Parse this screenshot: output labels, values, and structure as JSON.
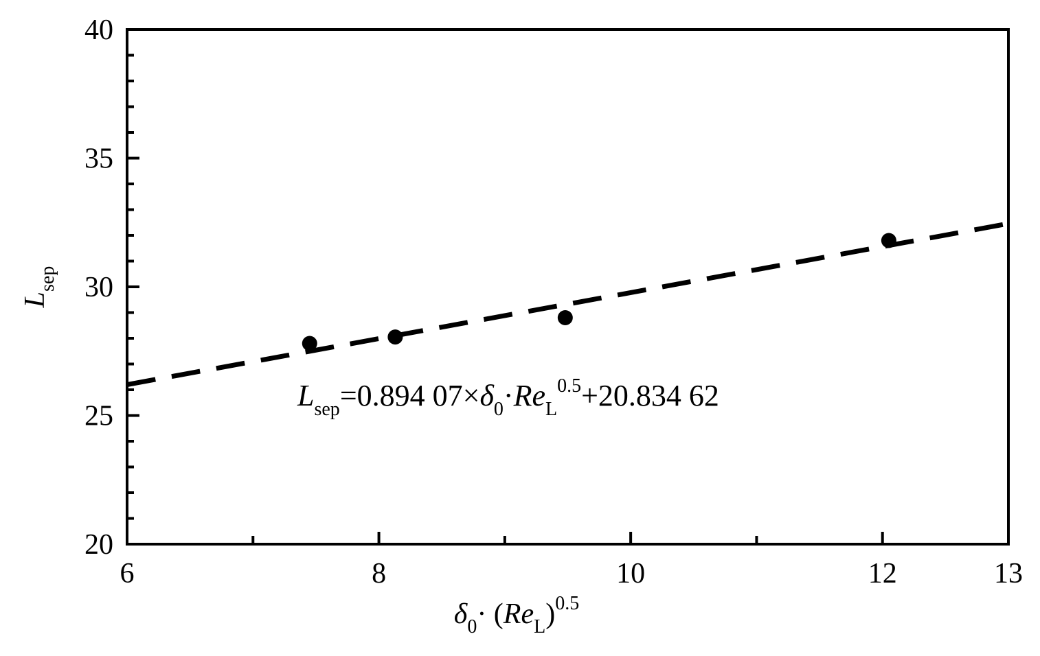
{
  "chart_data": {
    "type": "scatter",
    "title": "",
    "xlabel": {
      "base": "δ",
      "base_sub": "0",
      "middle": "· (",
      "var": "Re",
      "var_sub": "L",
      "close": ")",
      "sup": "0.5"
    },
    "ylabel": {
      "base": "L",
      "sub": "sep"
    },
    "xlim": [
      6,
      13
    ],
    "ylim": [
      20,
      40
    ],
    "x_ticks": [
      6,
      8,
      10,
      12,
      13
    ],
    "y_ticks": [
      20,
      25,
      30,
      35,
      40
    ],
    "x_minor_step": 1,
    "y_minor_step": 1,
    "grid": false,
    "series": [
      {
        "marker": "filled-circle",
        "points": [
          {
            "x": 7.45,
            "y": 27.8
          },
          {
            "x": 8.13,
            "y": 28.05
          },
          {
            "x": 9.48,
            "y": 28.8
          },
          {
            "x": 12.05,
            "y": 31.8
          }
        ]
      }
    ],
    "fit_line": {
      "style": "dashed",
      "slope": 0.89407,
      "intercept": 20.83462,
      "x_range": [
        6,
        13
      ]
    },
    "annotation": {
      "lhs": "L",
      "lhs_sub": "sep",
      "eq1": "=0.894 07",
      "times": "×",
      "delta": "δ",
      "delta_sub": "0",
      "dot": "·",
      "re": "Re",
      "re_sub": "L",
      "re_sup": "0.5",
      "tail": "+20.834 62"
    }
  }
}
